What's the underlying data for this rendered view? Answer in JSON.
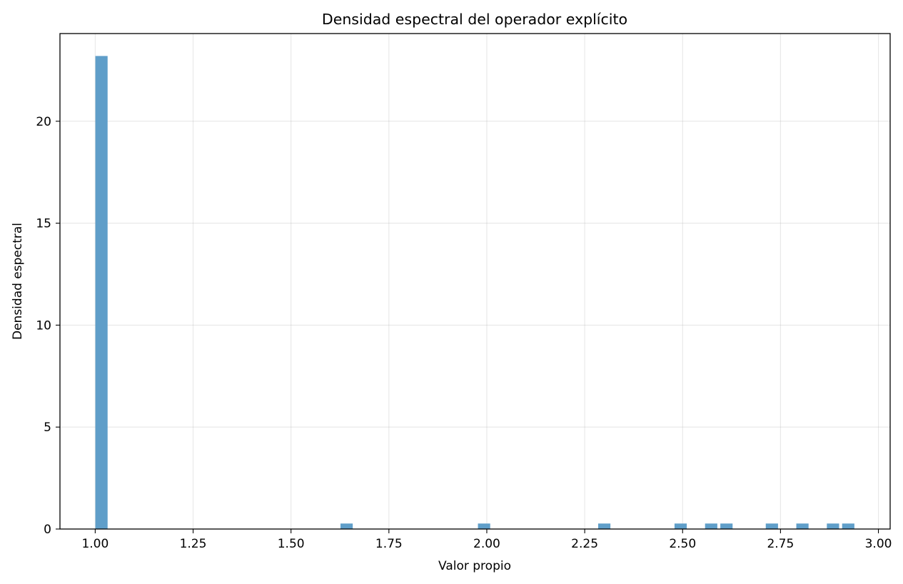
{
  "chart_data": {
    "type": "bar",
    "title": "Densidad espectral del operador explícito",
    "xlabel": "Valor propio",
    "ylabel": "Densidad espectral",
    "xlim": [
      0.91,
      3.03
    ],
    "ylim": [
      0,
      24.3
    ],
    "grid": true,
    "bar_color": "#5f9ec9",
    "bin_width": 0.0313,
    "x_ticks": [
      "1.00",
      "1.25",
      "1.50",
      "1.75",
      "2.00",
      "2.25",
      "2.50",
      "2.75",
      "3.00"
    ],
    "y_ticks": [
      "0",
      "5",
      "10",
      "15",
      "20"
    ],
    "bars": [
      {
        "x": 1.016,
        "value": 23.2
      },
      {
        "x": 1.642,
        "value": 0.27
      },
      {
        "x": 1.993,
        "value": 0.27
      },
      {
        "x": 2.3,
        "value": 0.27
      },
      {
        "x": 2.495,
        "value": 0.27
      },
      {
        "x": 2.573,
        "value": 0.27
      },
      {
        "x": 2.612,
        "value": 0.27
      },
      {
        "x": 2.728,
        "value": 0.27
      },
      {
        "x": 2.806,
        "value": 0.27
      },
      {
        "x": 2.884,
        "value": 0.27
      },
      {
        "x": 2.923,
        "value": 0.27
      }
    ]
  }
}
